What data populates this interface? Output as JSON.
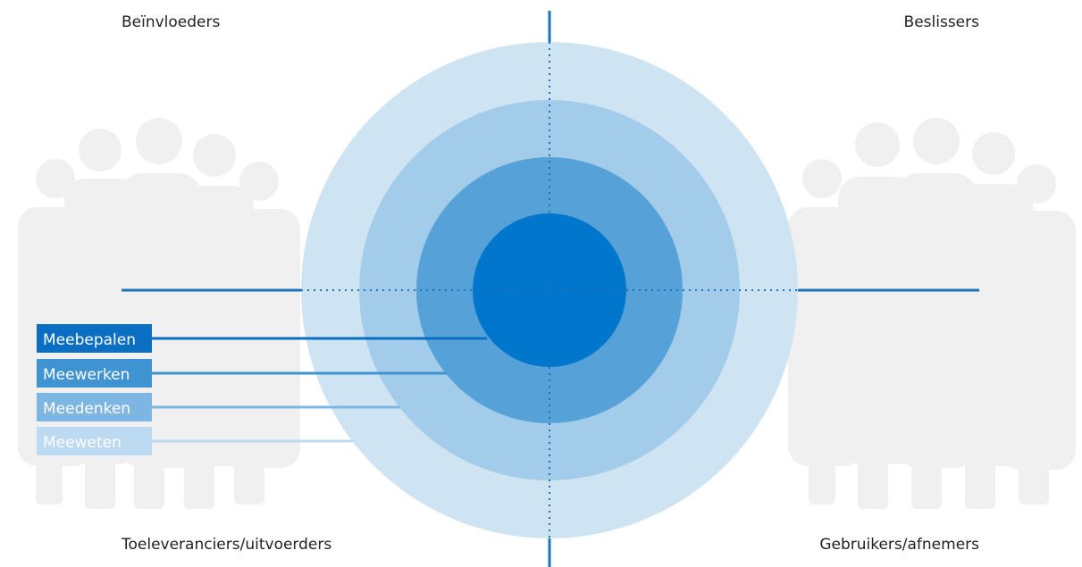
{
  "quadrants": {
    "top_left": "Beïnvloeders",
    "top_right": "Beslissers",
    "bottom_left": "Toeleveranciers/uitvoerders",
    "bottom_right": "Gebruikers/afnemers"
  },
  "levels": [
    {
      "label": "Meebepalen",
      "color": "#0A6FC2"
    },
    {
      "label": "Meewerken",
      "color": "#3F93D1"
    },
    {
      "label": "Meedenken",
      "color": "#7DB6E2"
    },
    {
      "label": "Meeweten",
      "color": "#BCDAF1"
    }
  ],
  "colors": {
    "ring_outer": "#CFE4F3",
    "ring_3": "#A3CCEA",
    "ring_2": "#56A2D8",
    "core": "#0077CC",
    "axis": "#1A73BE",
    "people": "#F0F0F0"
  },
  "icons": [
    "people-group-left-icon",
    "people-group-right-icon"
  ]
}
